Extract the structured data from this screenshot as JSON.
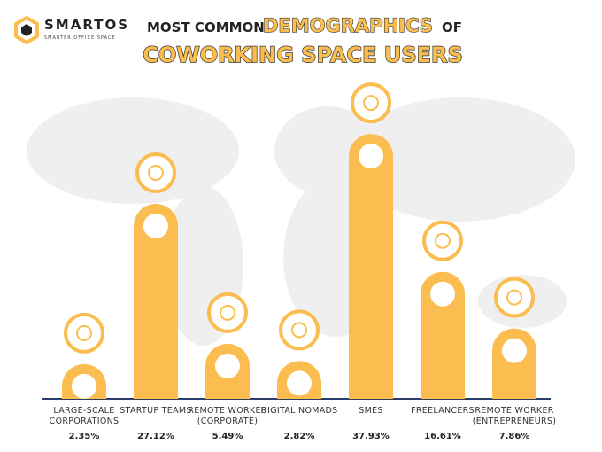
{
  "brand": {
    "name": "SMARTOS",
    "tagline": "SMARTER OFFICE SPACE"
  },
  "chart_data": {
    "type": "bar",
    "title": [
      "MOST COMMON",
      "DEMOGRAPHICS",
      "OF",
      "COWORKING SPACE USERS"
    ],
    "categories": [
      "LARGE-SCALE CORPORATIONS",
      "STARTUP TEAMS",
      "REMOTE WORKER (CORPORATE)",
      "DIGITAL NOMADS",
      "SMES",
      "FREELANCERS",
      "REMOTE WORKER (ENTREPRENEURS)"
    ],
    "values": [
      2.35,
      27.12,
      5.49,
      2.82,
      37.93,
      16.61,
      7.86
    ],
    "value_labels": [
      "2.35%",
      "27.12%",
      "5.49%",
      "2.82%",
      "37.93%",
      "16.61%",
      "7.86%"
    ],
    "color": "#fbbd4f"
  }
}
